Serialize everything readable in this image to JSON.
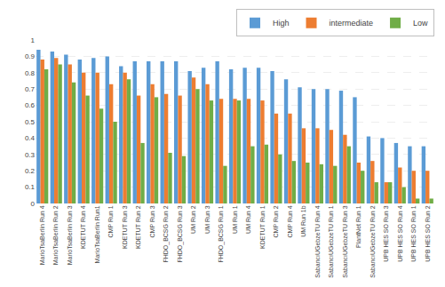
{
  "chart_data": {
    "type": "bar",
    "categories": [
      "MarioTsaBerlin Run 4",
      "MarioTsaBerlin Run 2",
      "MarioTsaBerlin Run 3",
      "KDETUT Run 4",
      "MarioTsaBerlin Run1",
      "CMP Run 1",
      "KDETUT Run 3",
      "KDETUT Run 2",
      "CMP Run 3",
      "FHDO_BCSG Run 2",
      "FHDO_BCSG Run 3",
      "UM Run 2",
      "UM Run 3",
      "FHDO_BCSG Run 1",
      "UM Run 1",
      "UM Run 4",
      "KDETUT Run 1",
      "CMP Run 2",
      "CMP Run 4",
      "UM Run 1b",
      "SabancıUGebzeTU Run 4",
      "SabancıUGebzeTU Run 1",
      "SabancıUGebzeTU Run 3",
      "PlantNet Run 1",
      "SabancıUGebzeTU Run 2",
      "UPB HES SO Run 3",
      "UPB HES SO Run 4",
      "UPB HES SO Run 1",
      "UPB HES SO Run 2"
    ],
    "series": [
      {
        "name": "High",
        "color": "#5B9BD5",
        "values": [
          0.94,
          0.93,
          0.91,
          0.88,
          0.89,
          0.9,
          0.84,
          0.87,
          0.87,
          0.87,
          0.87,
          0.81,
          0.83,
          0.87,
          0.82,
          0.83,
          0.83,
          0.81,
          0.76,
          0.71,
          0.7,
          0.7,
          0.69,
          0.65,
          0.41,
          0.4,
          0.37,
          0.35,
          0.35
        ]
      },
      {
        "name": "intermediate",
        "color": "#ED7D31",
        "values": [
          0.88,
          0.89,
          0.85,
          0.8,
          0.8,
          0.73,
          0.8,
          0.66,
          0.73,
          0.67,
          0.66,
          0.77,
          0.73,
          0.64,
          0.64,
          0.64,
          0.63,
          0.55,
          0.55,
          0.46,
          0.46,
          0.45,
          0.42,
          0.25,
          0.26,
          0.13,
          0.22,
          0.2,
          0.2
        ]
      },
      {
        "name": "Low",
        "color": "#70AD47",
        "values": [
          0.82,
          0.85,
          0.74,
          0.66,
          0.58,
          0.5,
          0.76,
          0.37,
          0.65,
          0.31,
          0.29,
          0.7,
          0.63,
          0.23,
          0.63,
          0.35,
          0.36,
          0.3,
          0.26,
          0.25,
          0.24,
          0.23,
          0.35,
          0.2,
          0.13,
          0.13,
          0.1,
          0.03,
          0.03
        ]
      }
    ],
    "ylim": [
      0,
      1
    ],
    "yticks": [
      0,
      0.1,
      0.2,
      0.3,
      0.4,
      0.5,
      0.6,
      0.7,
      0.8,
      0.9,
      1
    ],
    "grid": true,
    "legend": "upper right"
  }
}
